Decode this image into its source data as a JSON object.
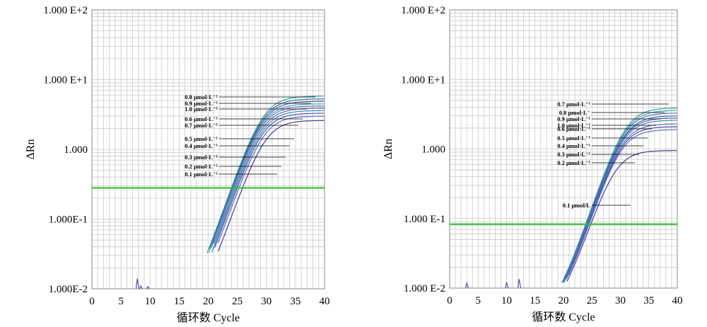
{
  "chart_data": [
    {
      "type": "line",
      "title": "",
      "xlabel": "循环数 Cycle",
      "ylabel": "ΔRn",
      "xlim": [
        0,
        40
      ],
      "ylim": [
        0.01,
        100
      ],
      "y_scale": "log",
      "grid": true,
      "x_ticks": [
        "0",
        "5",
        "10",
        "15",
        "20",
        "25",
        "30",
        "35",
        "40"
      ],
      "y_ticks": [
        "1.000 E+2",
        "1.000 E+1",
        "1.000",
        "1.000E-1",
        "1.000E-2"
      ],
      "threshold": 0.28,
      "threshold_color": "#2fbf2f",
      "series": [
        {
          "name": "0.8 μmol·L⁻¹",
          "ct": 24.0,
          "plateau": 5.8,
          "color": "#2aa198"
        },
        {
          "name": "0.9 μmol·L⁻¹",
          "ct": 24.1,
          "plateau": 5.3,
          "color": "#3b6fb0"
        },
        {
          "name": "1.0 μmol·L⁻¹",
          "ct": 24.2,
          "plateau": 4.9,
          "color": "#5b4fa8"
        },
        {
          "name": "0.6 μmol·L⁻¹",
          "ct": 24.3,
          "plateau": 4.5,
          "color": "#3fa9a0"
        },
        {
          "name": "0.7 μmol·L⁻¹",
          "ct": 24.4,
          "plateau": 4.2,
          "color": "#4b7fc0"
        },
        {
          "name": "0.5 μmol·L⁻¹",
          "ct": 24.6,
          "plateau": 3.9,
          "color": "#6a5fb8"
        },
        {
          "name": "0.4 μmol·L⁻¹",
          "ct": 24.8,
          "plateau": 3.6,
          "color": "#2f8fb0"
        },
        {
          "name": "0.3 μmol·L⁻¹",
          "ct": 25.0,
          "plateau": 3.3,
          "color": "#4a55a8"
        },
        {
          "name": "0.2 μmol·L⁻¹",
          "ct": 25.3,
          "plateau": 3.0,
          "color": "#5f6fc0"
        },
        {
          "name": "0.1 μmol·L⁻¹",
          "ct": 25.9,
          "plateau": 2.6,
          "color": "#3a3f9a"
        }
      ]
    },
    {
      "type": "line",
      "title": "",
      "xlabel": "循环数 Cycle",
      "ylabel": "ΔRn",
      "xlim": [
        0,
        40
      ],
      "ylim": [
        0.01,
        100
      ],
      "y_scale": "log",
      "grid": true,
      "x_ticks": [
        "0",
        "5",
        "10",
        "15",
        "20",
        "25",
        "30",
        "35",
        "40"
      ],
      "y_ticks": [
        "1.000 E+2",
        "1.000 E+1",
        "1.000",
        "1.000 E-1",
        "1.000 E-2"
      ],
      "threshold": 0.083,
      "threshold_color": "#2fbf2f",
      "series": [
        {
          "name": "0.7 μmol·L⁻¹",
          "ct": 23.9,
          "plateau": 3.9,
          "color": "#2aa198"
        },
        {
          "name": "0.8 μmol·L⁻",
          "ct": 24.0,
          "plateau": 3.6,
          "color": "#3fa9a0"
        },
        {
          "name": "0.9 μmol·L⁻¹",
          "ct": 24.0,
          "plateau": 3.3,
          "color": "#4b7fc0"
        },
        {
          "name": "1.0 μmol·L⁻¹",
          "ct": 24.1,
          "plateau": 3.0,
          "color": "#3b6fb0"
        },
        {
          "name": "0.6 μmol·L⁻¹",
          "ct": 24.1,
          "plateau": 2.8,
          "color": "#5b4fa8"
        },
        {
          "name": "0.5 μmol·L⁻¹",
          "ct": 24.2,
          "plateau": 2.6,
          "color": "#2f8fb0"
        },
        {
          "name": "0.4 μmol·L⁻¹",
          "ct": 24.3,
          "plateau": 2.3,
          "color": "#6a5fb8"
        },
        {
          "name": "0.3 μmol·L⁻¹",
          "ct": 24.4,
          "plateau": 2.1,
          "color": "#4a55a8"
        },
        {
          "name": "0.2 μmol·L⁻¹",
          "ct": 24.5,
          "plateau": 1.9,
          "color": "#5f6fc0"
        },
        {
          "name": "0.1 μmol/L",
          "ct": 24.8,
          "plateau": 0.95,
          "color": "#3a3f9a"
        }
      ]
    }
  ]
}
